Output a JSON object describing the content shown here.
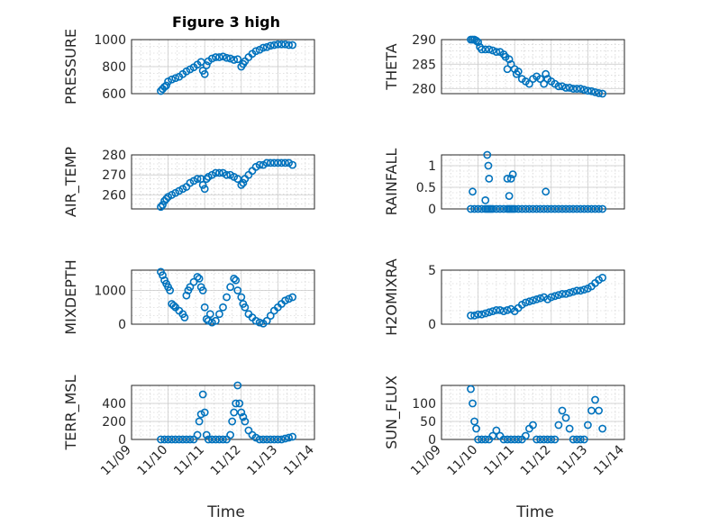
{
  "figure": {
    "title": "Figure 3 high",
    "xlabel": "Time",
    "xtick_labels": [
      "11/09",
      "11/10",
      "11/11",
      "11/12",
      "11/13",
      "11/14"
    ]
  },
  "chart_data": [
    {
      "type": "scatter",
      "id": "pressure",
      "ylabel": "PRESSURE",
      "ylim": [
        600,
        1000
      ],
      "yticks": [
        600,
        800,
        1000
      ],
      "grid": true,
      "minor_grid": true,
      "x": [
        9.8,
        9.85,
        9.9,
        9.95,
        10.0,
        10.1,
        10.2,
        10.3,
        10.4,
        10.5,
        10.6,
        10.7,
        10.8,
        10.9,
        10.95,
        11.0,
        11.05,
        11.1,
        11.2,
        11.3,
        11.4,
        11.5,
        11.6,
        11.7,
        11.8,
        11.9,
        12.0,
        12.05,
        12.1,
        12.2,
        12.3,
        12.4,
        12.5,
        12.6,
        12.7,
        12.8,
        12.9,
        13.0,
        13.1,
        13.2,
        13.3,
        13.4
      ],
      "y": [
        620,
        635,
        650,
        660,
        690,
        705,
        715,
        725,
        745,
        765,
        780,
        795,
        815,
        835,
        770,
        745,
        810,
        840,
        860,
        870,
        870,
        875,
        865,
        860,
        850,
        855,
        800,
        820,
        840,
        870,
        895,
        915,
        925,
        940,
        945,
        955,
        960,
        965,
        965,
        965,
        960,
        960
      ]
    },
    {
      "type": "scatter",
      "id": "theta",
      "ylabel": "THETA",
      "ylim": [
        279,
        290
      ],
      "yticks": [
        280,
        285,
        290
      ],
      "grid": true,
      "minor_grid": true,
      "x": [
        9.8,
        9.85,
        9.9,
        9.95,
        10.0,
        10.05,
        10.1,
        10.2,
        10.3,
        10.4,
        10.5,
        10.6,
        10.7,
        10.75,
        10.8,
        10.85,
        10.9,
        11.0,
        11.05,
        11.1,
        11.2,
        11.3,
        11.4,
        11.5,
        11.6,
        11.7,
        11.8,
        11.85,
        11.9,
        12.0,
        12.1,
        12.2,
        12.3,
        12.4,
        12.5,
        12.6,
        12.7,
        12.8,
        12.9,
        13.0,
        13.1,
        13.2,
        13.3,
        13.4
      ],
      "y": [
        290,
        290,
        290,
        289.8,
        289.5,
        288.5,
        288,
        288,
        288,
        287.8,
        287.5,
        287.5,
        287,
        286.5,
        284,
        286,
        285,
        284,
        283,
        283.5,
        282,
        281.5,
        281,
        282,
        282.5,
        282,
        281,
        283,
        282,
        281.5,
        281,
        280.5,
        280.5,
        280.2,
        280.2,
        280,
        280,
        280,
        279.8,
        279.6,
        279.5,
        279.3,
        279.1,
        279
      ]
    },
    {
      "type": "scatter",
      "id": "air_temp",
      "ylabel": "AIR_TEMP",
      "ylim": [
        253,
        280
      ],
      "yticks": [
        260,
        270,
        280
      ],
      "grid": true,
      "minor_grid": true,
      "x": [
        9.8,
        9.85,
        9.9,
        9.95,
        10.0,
        10.1,
        10.2,
        10.3,
        10.4,
        10.5,
        10.6,
        10.7,
        10.8,
        10.9,
        10.95,
        11.0,
        11.05,
        11.1,
        11.2,
        11.3,
        11.4,
        11.5,
        11.6,
        11.7,
        11.8,
        11.9,
        12.0,
        12.05,
        12.1,
        12.2,
        12.3,
        12.4,
        12.5,
        12.6,
        12.7,
        12.8,
        12.9,
        13.0,
        13.1,
        13.2,
        13.3,
        13.4
      ],
      "y": [
        254,
        255,
        257,
        258,
        259,
        260,
        261,
        262,
        263,
        264,
        266,
        267,
        268,
        268,
        265,
        263,
        268,
        269,
        270,
        271,
        271,
        271,
        270,
        270,
        269,
        268,
        265,
        266,
        268,
        270,
        272,
        274,
        275,
        275,
        276,
        276,
        276,
        276,
        276,
        276,
        276,
        275
      ]
    },
    {
      "type": "scatter",
      "id": "rainfall",
      "ylabel": "RAINFALL",
      "ylim": [
        0,
        1.25
      ],
      "yticks": [
        0,
        0.5,
        1
      ],
      "ytick_labels": [
        "0",
        "0.5",
        "1"
      ],
      "grid": true,
      "minor_grid": true,
      "x": [
        9.8,
        9.9,
        10.0,
        10.1,
        10.2,
        10.25,
        10.3,
        10.35,
        10.4,
        10.5,
        10.6,
        10.7,
        10.8,
        10.85,
        10.9,
        10.95,
        11.0,
        11.1,
        11.2,
        11.3,
        11.4,
        11.5,
        11.6,
        11.7,
        11.8,
        11.9,
        12.0,
        12.1,
        12.2,
        12.3,
        12.4,
        12.5,
        12.6,
        12.7,
        12.8,
        12.9,
        13.0,
        13.1,
        13.2,
        13.3,
        13.4
      ],
      "extra_points": {
        "x": [
          9.85,
          10.2,
          10.25,
          10.28,
          10.3,
          10.8,
          10.85,
          10.9,
          10.95,
          11.85
        ],
        "y": [
          0.4,
          0.2,
          1.25,
          1.0,
          0.7,
          0.7,
          0.3,
          0.7,
          0.8,
          0.4
        ]
      },
      "y": [
        0,
        0,
        0,
        0,
        0,
        0,
        0,
        0,
        0,
        0,
        0,
        0,
        0,
        0,
        0,
        0,
        0,
        0,
        0,
        0,
        0,
        0,
        0,
        0,
        0,
        0,
        0,
        0,
        0,
        0,
        0,
        0,
        0,
        0,
        0,
        0,
        0,
        0,
        0,
        0,
        0
      ]
    },
    {
      "type": "scatter",
      "id": "mixdepth",
      "ylabel": "MIXDEPTH",
      "ylim": [
        0,
        1600
      ],
      "yticks": [
        0,
        1000
      ],
      "grid": true,
      "minor_grid": true,
      "x": [
        9.8,
        9.85,
        9.9,
        9.95,
        10.0,
        10.05,
        10.1,
        10.15,
        10.2,
        10.3,
        10.4,
        10.45,
        10.5,
        10.55,
        10.6,
        10.7,
        10.8,
        10.85,
        10.9,
        10.95,
        11.0,
        11.05,
        11.1,
        11.15,
        11.2,
        11.3,
        11.4,
        11.5,
        11.6,
        11.7,
        11.8,
        11.85,
        11.9,
        12.0,
        12.05,
        12.1,
        12.2,
        12.3,
        12.4,
        12.5,
        12.6,
        12.7,
        12.8,
        12.9,
        13.0,
        13.1,
        13.2,
        13.3,
        13.4
      ],
      "y": [
        1550,
        1450,
        1300,
        1200,
        1100,
        1000,
        600,
        550,
        500,
        400,
        300,
        200,
        850,
        1000,
        1100,
        1250,
        1400,
        1350,
        1100,
        1000,
        500,
        150,
        100,
        300,
        50,
        100,
        300,
        500,
        800,
        1100,
        1350,
        1300,
        1000,
        800,
        600,
        500,
        300,
        200,
        100,
        50,
        20,
        100,
        250,
        400,
        500,
        600,
        700,
        750,
        800
      ]
    },
    {
      "type": "scatter",
      "id": "h2omixra",
      "ylabel": "H2OMIXRA",
      "ylim": [
        0,
        5
      ],
      "yticks": [
        0,
        5
      ],
      "grid": true,
      "minor_grid": true,
      "x": [
        9.8,
        9.9,
        10.0,
        10.1,
        10.2,
        10.3,
        10.4,
        10.5,
        10.6,
        10.7,
        10.8,
        10.9,
        11.0,
        11.1,
        11.2,
        11.3,
        11.4,
        11.5,
        11.6,
        11.7,
        11.8,
        11.9,
        12.0,
        12.1,
        12.2,
        12.3,
        12.4,
        12.5,
        12.6,
        12.7,
        12.8,
        12.9,
        13.0,
        13.1,
        13.2,
        13.3,
        13.4
      ],
      "y": [
        0.8,
        0.8,
        0.9,
        0.9,
        1.0,
        1.1,
        1.2,
        1.3,
        1.3,
        1.2,
        1.3,
        1.4,
        1.2,
        1.5,
        1.8,
        2.0,
        2.1,
        2.2,
        2.3,
        2.4,
        2.5,
        2.3,
        2.5,
        2.6,
        2.7,
        2.8,
        2.8,
        2.9,
        3.0,
        3.1,
        3.1,
        3.2,
        3.3,
        3.5,
        3.8,
        4.1,
        4.3
      ]
    },
    {
      "type": "scatter",
      "id": "terr_msl",
      "ylabel": "TERR_MSL",
      "ylim": [
        0,
        600
      ],
      "yticks": [
        0,
        200,
        400
      ],
      "grid": true,
      "minor_grid": true,
      "x": [
        9.8,
        9.9,
        10.0,
        10.1,
        10.2,
        10.3,
        10.4,
        10.5,
        10.6,
        10.7,
        10.8,
        10.85,
        10.9,
        10.95,
        11.0,
        11.05,
        11.1,
        11.2,
        11.3,
        11.4,
        11.5,
        11.6,
        11.7,
        11.75,
        11.8,
        11.85,
        11.9,
        11.95,
        12.0,
        12.05,
        12.1,
        12.2,
        12.3,
        12.4,
        12.5,
        12.6,
        12.7,
        12.8,
        12.9,
        13.0,
        13.1,
        13.2,
        13.3,
        13.4
      ],
      "y": [
        0,
        0,
        0,
        0,
        0,
        0,
        0,
        0,
        0,
        0,
        50,
        200,
        280,
        500,
        300,
        50,
        0,
        0,
        0,
        0,
        0,
        0,
        50,
        200,
        300,
        400,
        600,
        400,
        300,
        250,
        200,
        100,
        50,
        20,
        0,
        0,
        0,
        0,
        0,
        0,
        0,
        10,
        20,
        30
      ]
    },
    {
      "type": "scatter",
      "id": "sun_flux",
      "ylabel": "SUN_FLUX",
      "ylim": [
        0,
        150
      ],
      "yticks": [
        0,
        50,
        100
      ],
      "grid": true,
      "minor_grid": true,
      "x": [
        9.8,
        9.85,
        9.9,
        9.95,
        10.0,
        10.1,
        10.2,
        10.3,
        10.4,
        10.5,
        10.6,
        10.7,
        10.8,
        10.9,
        11.0,
        11.1,
        11.2,
        11.3,
        11.4,
        11.5,
        11.6,
        11.7,
        11.8,
        11.9,
        12.0,
        12.1,
        12.2,
        12.3,
        12.4,
        12.5,
        12.6,
        12.7,
        12.8,
        12.9,
        13.0,
        13.1,
        13.2,
        13.3,
        13.4
      ],
      "y": [
        140,
        100,
        50,
        30,
        0,
        0,
        0,
        0,
        10,
        25,
        10,
        0,
        0,
        0,
        0,
        0,
        0,
        10,
        30,
        40,
        0,
        0,
        0,
        0,
        0,
        0,
        40,
        80,
        60,
        30,
        0,
        0,
        0,
        0,
        40,
        80,
        110,
        80,
        30
      ]
    }
  ]
}
